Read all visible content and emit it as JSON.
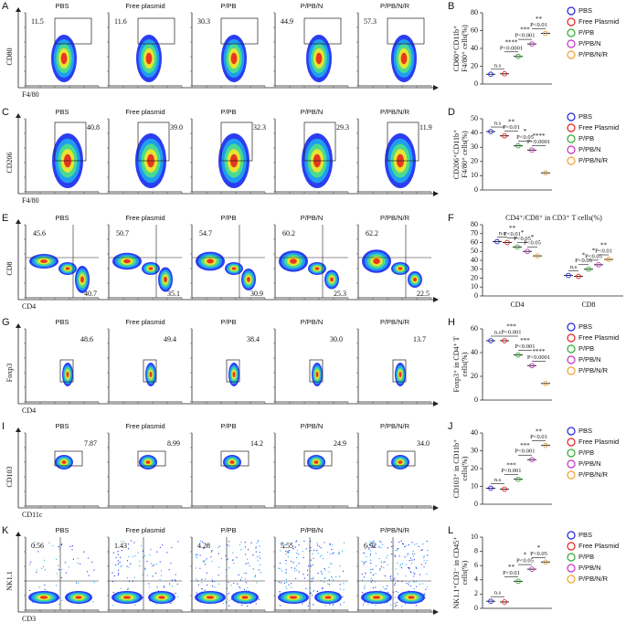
{
  "flow_panels": [
    {
      "letter": "A",
      "y_label": "CD80",
      "x_label": "F4/80",
      "groups": [
        "PBS",
        "Free plasmid",
        "P/PB",
        "P/PB/N",
        "P/PB/N/R"
      ],
      "percents": [
        "11.5",
        "11.6",
        "30.3",
        "44.9",
        "57.3"
      ]
    },
    {
      "letter": "C",
      "y_label": "CD206",
      "x_label": "F4/80",
      "groups": [
        "PBS",
        "Free plasmid",
        "P/PB",
        "P/PB/N",
        "P/PB/N/R"
      ],
      "percents": [
        "40.8",
        "39.0",
        "32.3",
        "29.3",
        "11.9"
      ]
    },
    {
      "letter": "E",
      "y_label": "CD8",
      "x_label": "CD4",
      "groups": [
        "PBS",
        "Free plasmid",
        "P/PB",
        "P/PB/N",
        "P/PB/N/R"
      ],
      "percents": [
        "45.6",
        "50.7",
        "54.7",
        "60.2",
        "62.2"
      ],
      "percents_lower": [
        "40.7",
        "35.1",
        "30.9",
        "25.3",
        "22.5"
      ]
    },
    {
      "letter": "G",
      "y_label": "Foxp3",
      "x_label": "CD4",
      "groups": [
        "PBS",
        "Free plasmid",
        "P/PB",
        "P/PB/N",
        "P/PB/N/R"
      ],
      "percents": [
        "48.6",
        "49.4",
        "38.4",
        "30.0",
        "13.7"
      ]
    },
    {
      "letter": "I",
      "y_label": "CD103",
      "x_label": "CD11c",
      "groups": [
        "PBS",
        "Free plasmid",
        "P/PB",
        "P/PB/N",
        "P/PB/N/R"
      ],
      "percents": [
        "7.87",
        "8.99",
        "14.2",
        "24.9",
        "34.0"
      ]
    },
    {
      "letter": "K",
      "y_label": "NK1.1",
      "x_label": "CD3",
      "groups": [
        "PBS",
        "Free plasmid",
        "P/PB",
        "P/PB/N",
        "P/PB/N/R"
      ],
      "percents": [
        "0.56",
        "1.43",
        "4.28",
        "5.55",
        "6.92"
      ]
    }
  ],
  "chart_data": [
    {
      "type": "dot",
      "letter": "B",
      "y_label_lines": [
        "CD80⁺CD11b⁺",
        "F4/80⁺ cells(%)"
      ],
      "ylim": [
        0,
        80
      ],
      "yticks": [
        0,
        20,
        40,
        60,
        80
      ],
      "legend": true,
      "series": [
        {
          "name": "PBS",
          "color": "#2020d8",
          "values": [
            11
          ]
        },
        {
          "name": "Free Plasmid",
          "color": "#e02020",
          "values": [
            11.5
          ]
        },
        {
          "name": "P/PB",
          "color": "#2eaa2e",
          "values": [
            31
          ]
        },
        {
          "name": "P/PB/N",
          "color": "#c030c0",
          "values": [
            45
          ]
        },
        {
          "name": "P/PB/N/R",
          "color": "#f0a030",
          "values": [
            57
          ]
        }
      ],
      "annotations": [
        {
          "stars": "n.s"
        },
        {
          "stars": "****",
          "p": "P<0.0001"
        },
        {
          "stars": "***",
          "p": "P<0.001"
        },
        {
          "stars": "**",
          "p": "P<0.01"
        }
      ]
    },
    {
      "type": "dot",
      "letter": "D",
      "y_label_lines": [
        "CD206⁺CD11b⁺",
        "F4/80⁺ cells(%)"
      ],
      "ylim": [
        0,
        50
      ],
      "yticks": [
        0,
        10,
        20,
        30,
        40,
        50
      ],
      "legend": true,
      "series": [
        {
          "name": "PBS",
          "color": "#2020d8",
          "values": [
            41
          ]
        },
        {
          "name": "Free Plasmid",
          "color": "#e02020",
          "values": [
            38
          ]
        },
        {
          "name": "P/PB",
          "color": "#2eaa2e",
          "values": [
            31
          ]
        },
        {
          "name": "P/PB/N",
          "color": "#c030c0",
          "values": [
            28
          ]
        },
        {
          "name": "P/PB/N/R",
          "color": "#f0a030",
          "values": [
            12
          ]
        }
      ],
      "annotations": [
        {
          "stars": "n.s"
        },
        {
          "stars": "**",
          "p": "P<0.01"
        },
        {
          "stars": "*",
          "p": "P<0.05"
        },
        {
          "stars": "****",
          "p": "P<0.0001"
        }
      ]
    },
    {
      "type": "dot",
      "letter": "F",
      "title": "CD4⁺/CD8⁺ in CD3⁺ T cells(%)",
      "categories": [
        "CD4",
        "CD8"
      ],
      "ylim": [
        0,
        80
      ],
      "yticks": [
        0,
        10,
        20,
        30,
        40,
        50,
        60,
        70,
        80
      ],
      "legend": false,
      "series": [
        {
          "name": "PBS",
          "color": "#2020d8",
          "values": [
            61,
            23
          ]
        },
        {
          "name": "Free Plasmid",
          "color": "#e02020",
          "values": [
            60,
            22
          ]
        },
        {
          "name": "P/PB",
          "color": "#2eaa2e",
          "values": [
            55,
            30
          ]
        },
        {
          "name": "P/PB/N",
          "color": "#c030c0",
          "values": [
            50,
            35
          ]
        },
        {
          "name": "P/PB/N/R",
          "color": "#f0a030",
          "values": [
            45,
            41
          ]
        }
      ],
      "annotations": [
        [
          {
            "stars": "n.s"
          },
          {
            "stars": "**",
            "p": "P<0.01"
          },
          {
            "stars": "*",
            "p": "P<0.05"
          },
          {
            "stars": "*",
            "p": "P<0.05"
          }
        ],
        [
          {
            "stars": "n.s"
          },
          {
            "stars": "*",
            "p": "P<0.05"
          },
          {
            "stars": "*",
            "p": "P<0.05"
          },
          {
            "stars": "**",
            "p": "P<0.01"
          }
        ]
      ]
    },
    {
      "type": "dot",
      "letter": "H",
      "y_label_lines": [
        "Foxp3⁺ in CD4⁺ T",
        "cells(%)"
      ],
      "ylim": [
        0,
        60
      ],
      "yticks": [
        0,
        20,
        40,
        60
      ],
      "legend": true,
      "series": [
        {
          "name": "PBS",
          "color": "#2020d8",
          "values": [
            50
          ]
        },
        {
          "name": "Free Plasmid",
          "color": "#e02020",
          "values": [
            50
          ]
        },
        {
          "name": "P/PB",
          "color": "#2eaa2e",
          "values": [
            38
          ]
        },
        {
          "name": "P/PB/N",
          "color": "#c030c0",
          "values": [
            29
          ]
        },
        {
          "name": "P/PB/N/R",
          "color": "#f0a030",
          "values": [
            14
          ]
        }
      ],
      "annotations": [
        {
          "stars": "n.s"
        },
        {
          "stars": "***",
          "p": "P<0.001"
        },
        {
          "stars": "***",
          "p": "P<0.001"
        },
        {
          "stars": "****",
          "p": "P<0.0001"
        }
      ]
    },
    {
      "type": "dot",
      "letter": "J",
      "y_label_lines": [
        "CD103⁺ in CD11b⁺",
        "cells(%)"
      ],
      "ylim": [
        0,
        40
      ],
      "yticks": [
        0,
        10,
        20,
        30,
        40
      ],
      "legend": true,
      "series": [
        {
          "name": "PBS",
          "color": "#2020d8",
          "values": [
            9
          ]
        },
        {
          "name": "Free Plasmid",
          "color": "#e02020",
          "values": [
            8.5
          ]
        },
        {
          "name": "P/PB",
          "color": "#2eaa2e",
          "values": [
            14
          ]
        },
        {
          "name": "P/PB/N",
          "color": "#c030c0",
          "values": [
            25
          ]
        },
        {
          "name": "P/PB/N/R",
          "color": "#f0a030",
          "values": [
            33
          ]
        }
      ],
      "annotations": [
        {
          "stars": "n.s"
        },
        {
          "stars": "***",
          "p": "P<0.001"
        },
        {
          "stars": "***",
          "p": "P<0.001"
        },
        {
          "stars": "**",
          "p": "P<0.01"
        }
      ]
    },
    {
      "type": "dot",
      "letter": "L",
      "y_label_lines": [
        "NK1.1⁺CD3⁻ in CD45⁺",
        "cells(%)"
      ],
      "ylim": [
        0,
        10
      ],
      "yticks": [
        0,
        2,
        4,
        6,
        8,
        10
      ],
      "legend": true,
      "series": [
        {
          "name": "PBS",
          "color": "#2020d8",
          "values": [
            1
          ]
        },
        {
          "name": "Free Plasmid",
          "color": "#e02020",
          "values": [
            0.9
          ]
        },
        {
          "name": "P/PB",
          "color": "#2eaa2e",
          "values": [
            3.8
          ]
        },
        {
          "name": "P/PB/N",
          "color": "#c030c0",
          "values": [
            5.5
          ]
        },
        {
          "name": "P/PB/N/R",
          "color": "#f0a030",
          "values": [
            6.5
          ]
        }
      ],
      "annotations": [
        {
          "stars": "n.s"
        },
        {
          "stars": "**",
          "p": "P<0.01"
        },
        {
          "stars": "*",
          "p": "P<0.05"
        },
        {
          "stars": "*",
          "p": "P<0.05"
        }
      ]
    }
  ]
}
